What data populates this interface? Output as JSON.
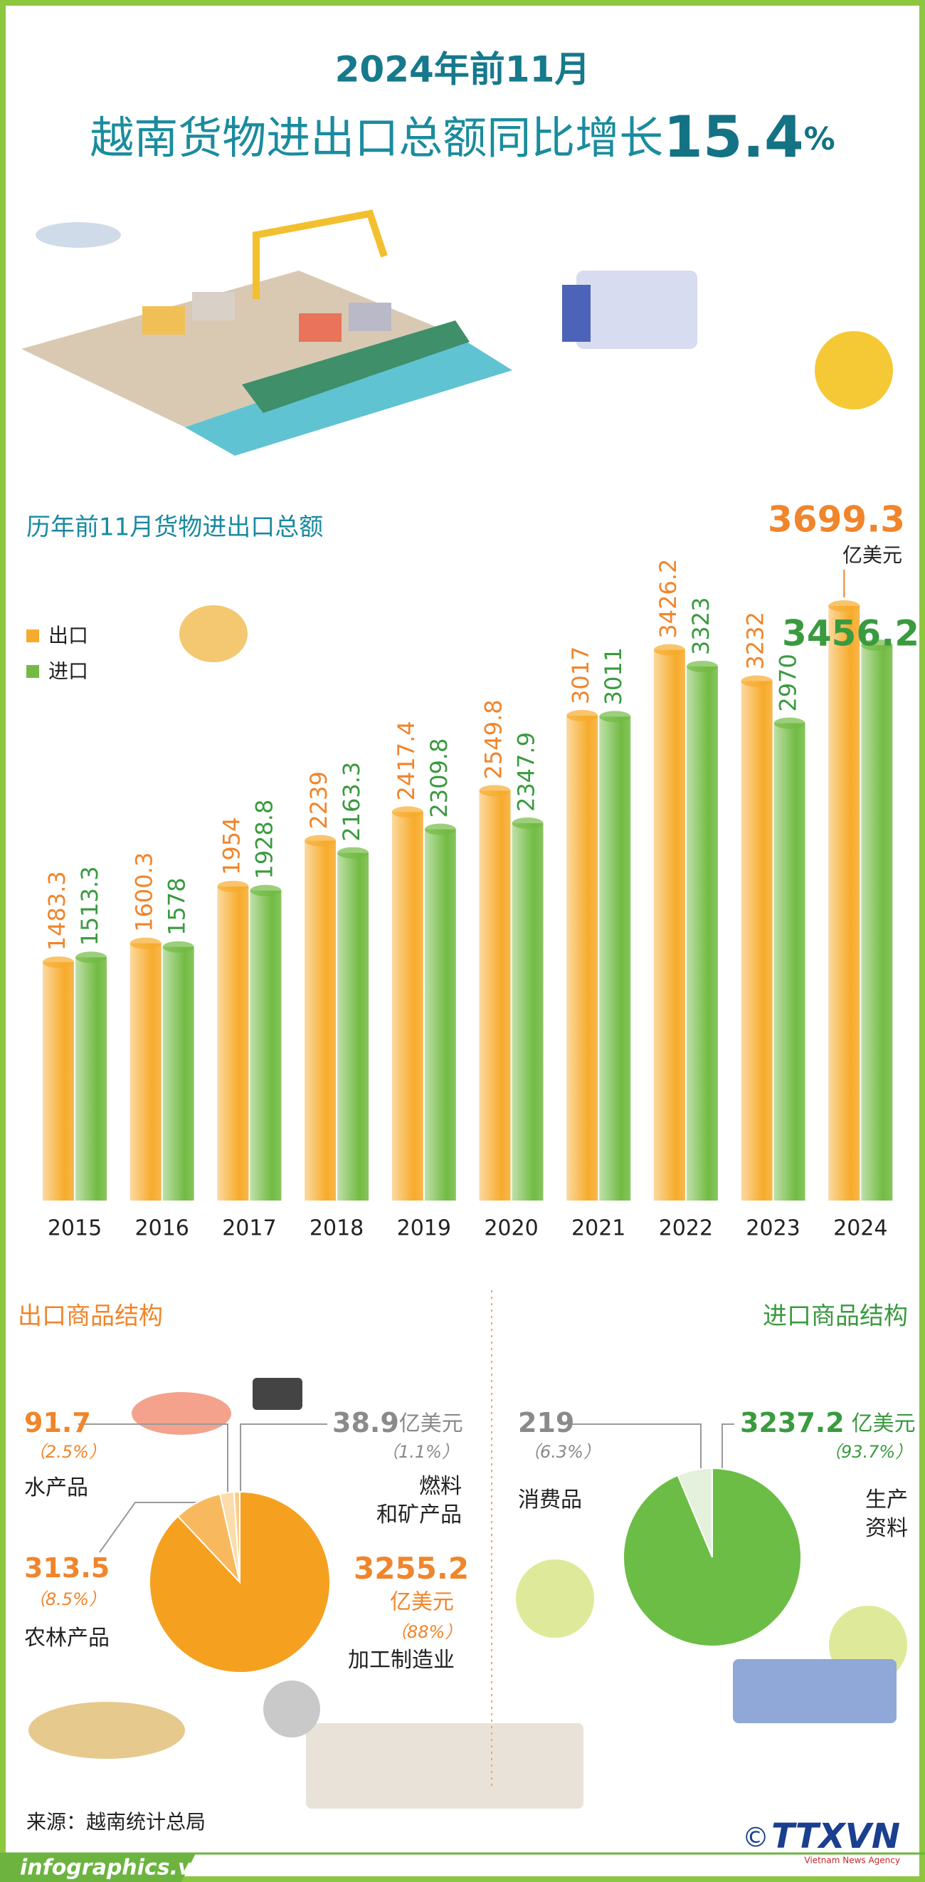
{
  "header": {
    "line1": "2024年前11月",
    "line2": "越南货物进出口总额同比增长",
    "growth": "15.4",
    "growth_unit": "%"
  },
  "chart_data": [
    {
      "type": "bar",
      "title": "历年前11月货物进出口总额",
      "unit": "亿美元",
      "categories": [
        "2015",
        "2016",
        "2017",
        "2018",
        "2019",
        "2020",
        "2021",
        "2022",
        "2023",
        "2024"
      ],
      "series": [
        {
          "name": "出口",
          "color": "#f7ab2c",
          "values": [
            1483.3,
            1600.3,
            1954,
            2239,
            2417.4,
            2549.8,
            3017,
            3426.2,
            3232,
            3699.3
          ]
        },
        {
          "name": "进口",
          "color": "#72bb43",
          "values": [
            1513.3,
            1578,
            1928.8,
            2163.3,
            2309.8,
            2347.9,
            3011,
            3323,
            2970,
            3456.2
          ]
        }
      ]
    },
    {
      "type": "pie",
      "title": "出口商品结构",
      "unit": "亿美元",
      "categories": [
        "燃料\n和矿产品",
        "水产品",
        "农林产品",
        "加工制造业"
      ],
      "values": [
        38.9,
        91.7,
        313.5,
        3255.2
      ],
      "share_labels": [
        "（1.1%）",
        "（2.5%）",
        "（8.5%）",
        "（88%）"
      ],
      "colors": [
        "#f9cd8f",
        "#fbdcaa",
        "#f8b95e",
        "#f5a11f"
      ]
    },
    {
      "type": "pie",
      "title": "进口商品结构",
      "unit": "亿美元",
      "categories": [
        "消费品",
        "生产\n资料"
      ],
      "values": [
        219,
        3237.2
      ],
      "share_labels": [
        "（6.3%）",
        "（93.7%）"
      ],
      "colors": [
        "#e4f1dc",
        "#6cbd45"
      ]
    }
  ],
  "footer": {
    "source": "来源：越南统计总局",
    "site": "infographics.vn",
    "copyright": "©",
    "agency": "TTXVN",
    "agency_en": "Vietnam News Agency"
  }
}
